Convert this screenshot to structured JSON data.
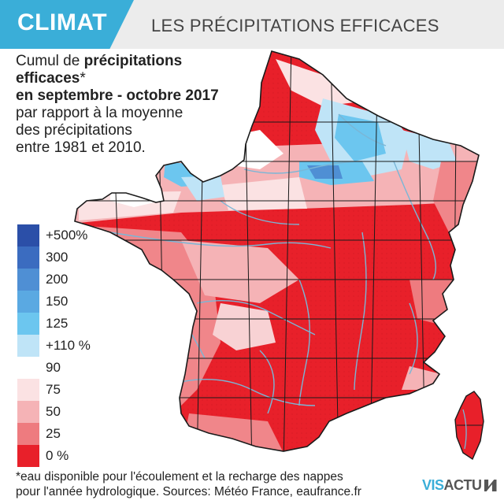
{
  "header": {
    "tag": "CLIMAT",
    "title": "LES PRÉCIPITATIONS EFFICACES"
  },
  "subtitle": {
    "part1": "Cumul de ",
    "bold1": "précipitations efficaces",
    "part2": "*",
    "bold2": "en septembre - octobre 2017",
    "line3": "par rapport à la moyenne",
    "line4": "des précipitations",
    "line5": "entre 1981 et 2010."
  },
  "legend": [
    {
      "label": "+500%",
      "color": "#2b4fa8"
    },
    {
      "label": "300",
      "color": "#3b6cc0"
    },
    {
      "label": "200",
      "color": "#4f8fd4"
    },
    {
      "label": "150",
      "color": "#5aa9e2"
    },
    {
      "label": "125",
      "color": "#6cc6ef"
    },
    {
      "label": "+110 %",
      "color": "#bfe4f7"
    },
    {
      "label": "90",
      "color": "#ffffff"
    },
    {
      "label": "75",
      "color": "#fbe2e3"
    },
    {
      "label": "50",
      "color": "#f5b3b6"
    },
    {
      "label": "25",
      "color": "#ee7b7f"
    },
    {
      "label": "0 %",
      "color": "#e8202a"
    }
  ],
  "footnote": {
    "line1": "*eau disponible pour l'écoulement et la recharge des nappes",
    "line2": "pour l'année hydrologique. Sources: Météo France, eaufrance.fr"
  },
  "logo": {
    "vis": "VIS",
    "actu": "ACTU"
  },
  "colors": {
    "accent": "#3aaed8",
    "header_bg": "#ececec",
    "rivers": "#7ab6d6",
    "borders": "#1a1a1a"
  }
}
